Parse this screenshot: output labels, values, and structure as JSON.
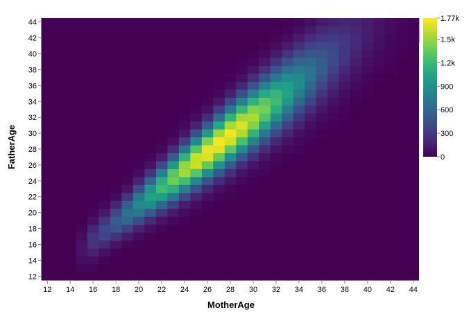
{
  "chart_data": {
    "type": "heatmap",
    "title": "",
    "xlabel": "MotherAge",
    "ylabel": "FatherAge",
    "xlim": [
      11.5,
      44.5
    ],
    "ylim": [
      11.5,
      44.5
    ],
    "x_ticks": [
      12,
      14,
      16,
      18,
      20,
      22,
      24,
      26,
      28,
      30,
      32,
      34,
      36,
      38,
      40,
      42,
      44
    ],
    "y_ticks": [
      12,
      14,
      16,
      18,
      20,
      22,
      24,
      26,
      28,
      30,
      32,
      34,
      36,
      38,
      40,
      42,
      44
    ],
    "colormap": "viridis",
    "colorscale": {
      "min": 0,
      "max": 1770,
      "ticks": [
        0,
        300,
        600,
        900,
        1200,
        1500,
        1770
      ],
      "tick_labels": [
        "0",
        "300",
        "600",
        "900",
        "1.2k",
        "1.5k",
        "1.77k"
      ],
      "legend_position": "top-right"
    },
    "approx_distribution": {
      "description": "counts of births by mother age (x) and father age (y)",
      "peak_count": 1770,
      "peak_location": {
        "MotherAge": 27,
        "FatherAge": 28
      },
      "trend": "FatherAge ≈ 1.1 × MotherAge − 1"
    }
  }
}
